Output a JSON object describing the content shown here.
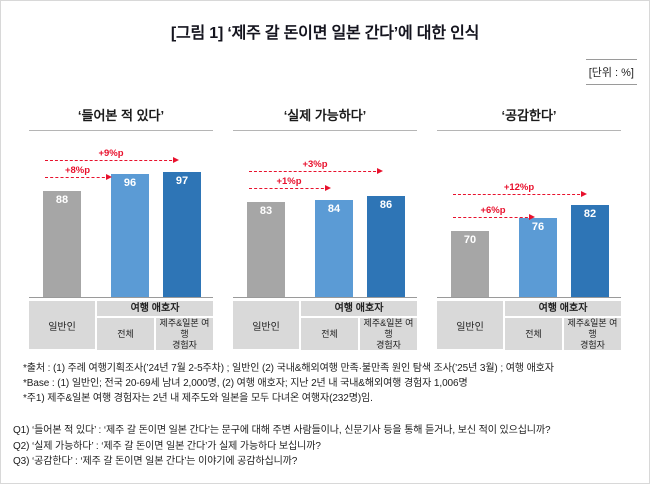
{
  "title": "[그림 1] ‘제주 갈 돈이면 일본 간다’에 대한 인식",
  "unit_label": "[단위 : %]",
  "colors": {
    "bar_general": "#a6a6a6",
    "bar_total": "#5b9bd5",
    "bar_experienced": "#2e75b6",
    "arrow": "#e8112d",
    "label_box": "#d9d9d9"
  },
  "x_labels": {
    "general": "일반인",
    "group_header": "여행 애호자",
    "sub1": "전체",
    "sub2": "제주&일본 여행\n경험자"
  },
  "chart_data": [
    {
      "type": "bar",
      "title": "‘들어본 적 있다’",
      "categories": [
        "일반인",
        "여행 애호자 전체",
        "제주&일본 여행 경험자"
      ],
      "values": [
        88,
        96,
        97
      ],
      "ylim": [
        0,
        100
      ],
      "annotations": [
        {
          "label": "+8%p",
          "from": 0,
          "to": 1
        },
        {
          "label": "+9%p",
          "from": 0,
          "to": 2
        }
      ]
    },
    {
      "type": "bar",
      "title": "‘실제 가능하다’",
      "categories": [
        "일반인",
        "여행 애호자 전체",
        "제주&일본 여행 경험자"
      ],
      "values": [
        83,
        84,
        86
      ],
      "ylim": [
        0,
        100
      ],
      "annotations": [
        {
          "label": "+1%p",
          "from": 0,
          "to": 1
        },
        {
          "label": "+3%p",
          "from": 0,
          "to": 2
        }
      ]
    },
    {
      "type": "bar",
      "title": "‘공감한다’",
      "categories": [
        "일반인",
        "여행 애호자 전체",
        "제주&일본 여행 경험자"
      ],
      "values": [
        70,
        76,
        82
      ],
      "ylim": [
        0,
        100
      ],
      "annotations": [
        {
          "label": "+6%p",
          "from": 0,
          "to": 1
        },
        {
          "label": "+12%p",
          "from": 0,
          "to": 2
        }
      ]
    }
  ],
  "footnotes": [
    "*출처 : (1) 주례 여행기획조사(’24년 7월 2-5주차) ; 일반인 (2) 국내&해외여행 만족·불만족 원인 탐색 조사(’25년 3월) ; 여행 애호자",
    "*Base : (1) 일반인; 전국 20-69세 남녀 2,000명, (2) 여행 애호자; 지난 2년 내 국내&해외여행 경험자 1,006명",
    "*주1) 제주&일본 여행 경험자는 2년 내 제주도와 일본을 모두 다녀온 여행자(232명)임."
  ],
  "questions": [
    "Q1) ‘들어본 적 있다’ : ‘제주 갈 돈이면 일본 간다’는 문구에 대해 주변 사람들이나, 신문기사 등을 통해 듣거나, 보신 적이 있으십니까?",
    "Q2) ‘실제 가능하다’ : ‘제주 갈 돈이면 일본 간다’가 실제 가능하다 보십니까?",
    "Q3) ‘공감한다’ : ‘제주 갈 돈이면 일본 간다’는 이야기에 공감하십니까?"
  ]
}
